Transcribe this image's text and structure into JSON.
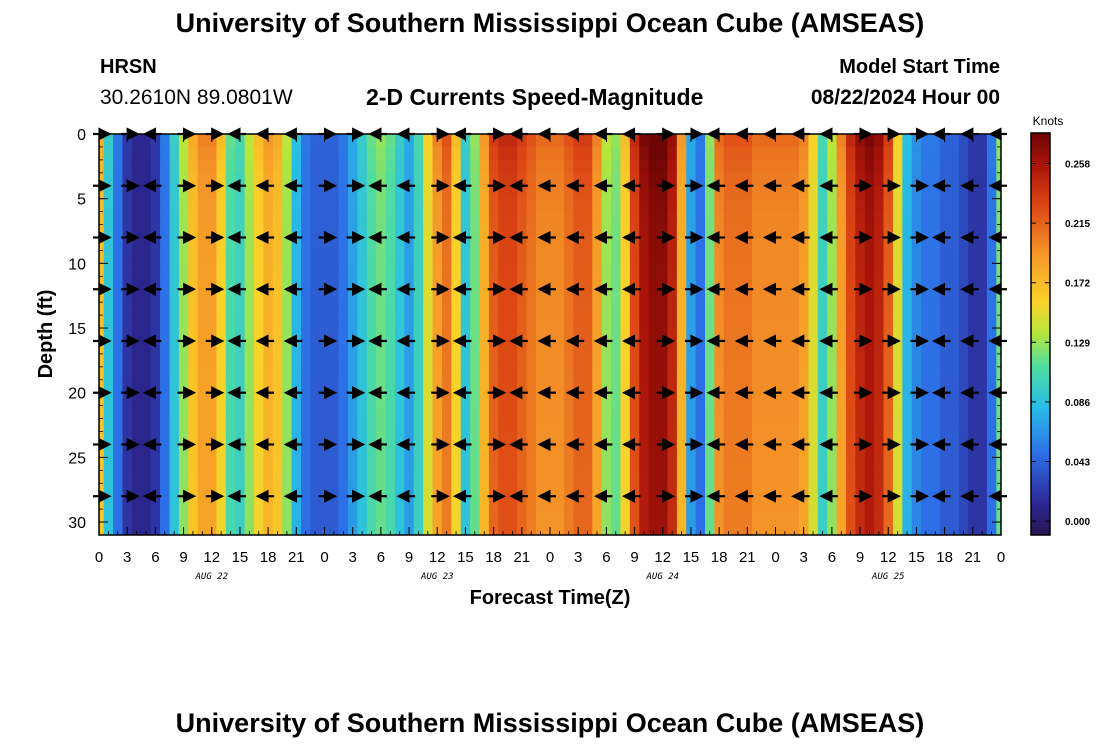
{
  "header": {
    "title": "University of Southern Mississippi Ocean Cube (AMSEAS)",
    "station": "HRSN",
    "coordinates": "30.2610N  89.0801W",
    "subtitle": "2-D Currents Speed-Magnitude",
    "model_start_label": "Model Start Time",
    "model_start_value": "08/22/2024 Hour 00"
  },
  "footer": {
    "title": "University of Southern Mississippi Ocean Cube (AMSEAS)"
  },
  "chart_data": {
    "type": "heatmap",
    "xlabel": "Forecast Time(Z)",
    "ylabel": "Depth (ft)",
    "xlim": [
      0,
      96
    ],
    "ylim": [
      0,
      31
    ],
    "x_tick_hours": [
      0,
      3,
      6,
      9,
      12,
      15,
      18,
      21,
      24,
      27,
      30,
      33,
      36,
      39,
      42,
      45,
      48,
      51,
      54,
      57,
      60,
      63,
      66,
      69,
      72,
      75,
      78,
      81,
      84,
      87,
      90,
      93,
      96
    ],
    "x_tick_labels": [
      "0",
      "3",
      "6",
      "9",
      "12",
      "15",
      "18",
      "21",
      "0",
      "3",
      "6",
      "9",
      "12",
      "15",
      "18",
      "21",
      "0",
      "3",
      "6",
      "9",
      "12",
      "15",
      "18",
      "21",
      "0",
      "3",
      "6",
      "9",
      "12",
      "15",
      "18",
      "21",
      "0"
    ],
    "y_ticks": [
      0,
      5,
      10,
      15,
      20,
      25,
      30
    ],
    "y_tick_labels": [
      "0",
      "5",
      "10",
      "15",
      "20",
      "25",
      "30"
    ],
    "date_labels": [
      {
        "hour": 12,
        "label": "AUG 22"
      },
      {
        "hour": 36,
        "label": "AUG 23"
      },
      {
        "hour": 60,
        "label": "AUG 24"
      },
      {
        "hour": 84,
        "label": "AUG 25"
      }
    ],
    "colorbar": {
      "unit": "Knots",
      "min": -0.01,
      "max": 0.28,
      "ticks": [
        0.0,
        0.043,
        0.086,
        0.129,
        0.172,
        0.215,
        0.258
      ],
      "tick_labels": [
        "0.000",
        "0.043",
        "0.086",
        "0.129",
        "0.172",
        "0.215",
        "0.258"
      ]
    },
    "speed_profile": {
      "description": "Approximate depth-averaged current speed (knots) vs forecast hour",
      "hours": [
        0,
        1,
        2,
        3,
        4,
        5,
        6,
        7,
        8,
        9,
        10,
        11,
        12,
        13,
        14,
        15,
        16,
        17,
        18,
        19,
        20,
        21,
        22,
        23,
        24,
        25,
        26,
        27,
        28,
        29,
        30,
        31,
        32,
        33,
        34,
        35,
        36,
        37,
        38,
        39,
        40,
        41,
        42,
        43,
        44,
        45,
        46,
        47,
        48,
        49,
        50,
        51,
        52,
        53,
        54,
        55,
        56,
        57,
        58,
        59,
        60,
        61,
        62,
        63,
        64,
        65,
        66,
        67,
        68,
        69,
        70,
        71,
        72,
        73,
        74,
        75,
        76,
        77,
        78,
        79,
        80,
        81,
        82,
        83,
        84,
        85,
        86,
        87,
        88,
        89,
        90,
        91,
        92,
        93,
        94,
        95,
        96
      ],
      "speed": [
        0.17,
        0.09,
        0.05,
        0.02,
        0.01,
        0.01,
        0.02,
        0.05,
        0.09,
        0.13,
        0.17,
        0.19,
        0.19,
        0.16,
        0.11,
        0.1,
        0.13,
        0.16,
        0.18,
        0.17,
        0.13,
        0.08,
        0.05,
        0.04,
        0.04,
        0.04,
        0.05,
        0.07,
        0.09,
        0.11,
        0.12,
        0.11,
        0.09,
        0.07,
        0.1,
        0.15,
        0.19,
        0.21,
        0.16,
        0.09,
        0.12,
        0.18,
        0.22,
        0.23,
        0.23,
        0.22,
        0.21,
        0.2,
        0.2,
        0.2,
        0.21,
        0.22,
        0.22,
        0.19,
        0.13,
        0.12,
        0.16,
        0.23,
        0.26,
        0.27,
        0.27,
        0.25,
        0.18,
        0.07,
        0.05,
        0.12,
        0.2,
        0.21,
        0.21,
        0.21,
        0.2,
        0.2,
        0.2,
        0.2,
        0.2,
        0.19,
        0.15,
        0.1,
        0.13,
        0.19,
        0.23,
        0.25,
        0.26,
        0.25,
        0.22,
        0.15,
        0.08,
        0.06,
        0.05,
        0.05,
        0.04,
        0.04,
        0.03,
        0.02,
        0.02,
        0.05,
        0.12
      ]
    },
    "vector_rows_depth_ft": [
      0,
      4,
      8,
      12,
      16,
      20,
      24,
      28
    ],
    "vector_columns_hours": [
      0,
      3,
      6,
      9,
      12,
      15,
      18,
      21,
      24,
      27,
      30,
      33,
      36,
      39,
      42,
      45,
      48,
      51,
      54,
      57,
      60,
      63,
      66,
      69,
      72,
      75,
      78,
      81,
      84,
      87,
      90,
      93,
      96
    ],
    "vector_directions": {
      "description": "Arrow heading per column (E = eastward, W = westward)",
      "by_hour": [
        "E",
        "E",
        "W",
        "E",
        "E",
        "W",
        "W",
        "W",
        "E",
        "E",
        "W",
        "W",
        "E",
        "W",
        "E",
        "W",
        "W",
        "W",
        "W",
        "W",
        "E",
        "E",
        "W",
        "W",
        "W",
        "W",
        "W",
        "E",
        "E",
        "E",
        "W",
        "W",
        "W"
      ]
    }
  }
}
